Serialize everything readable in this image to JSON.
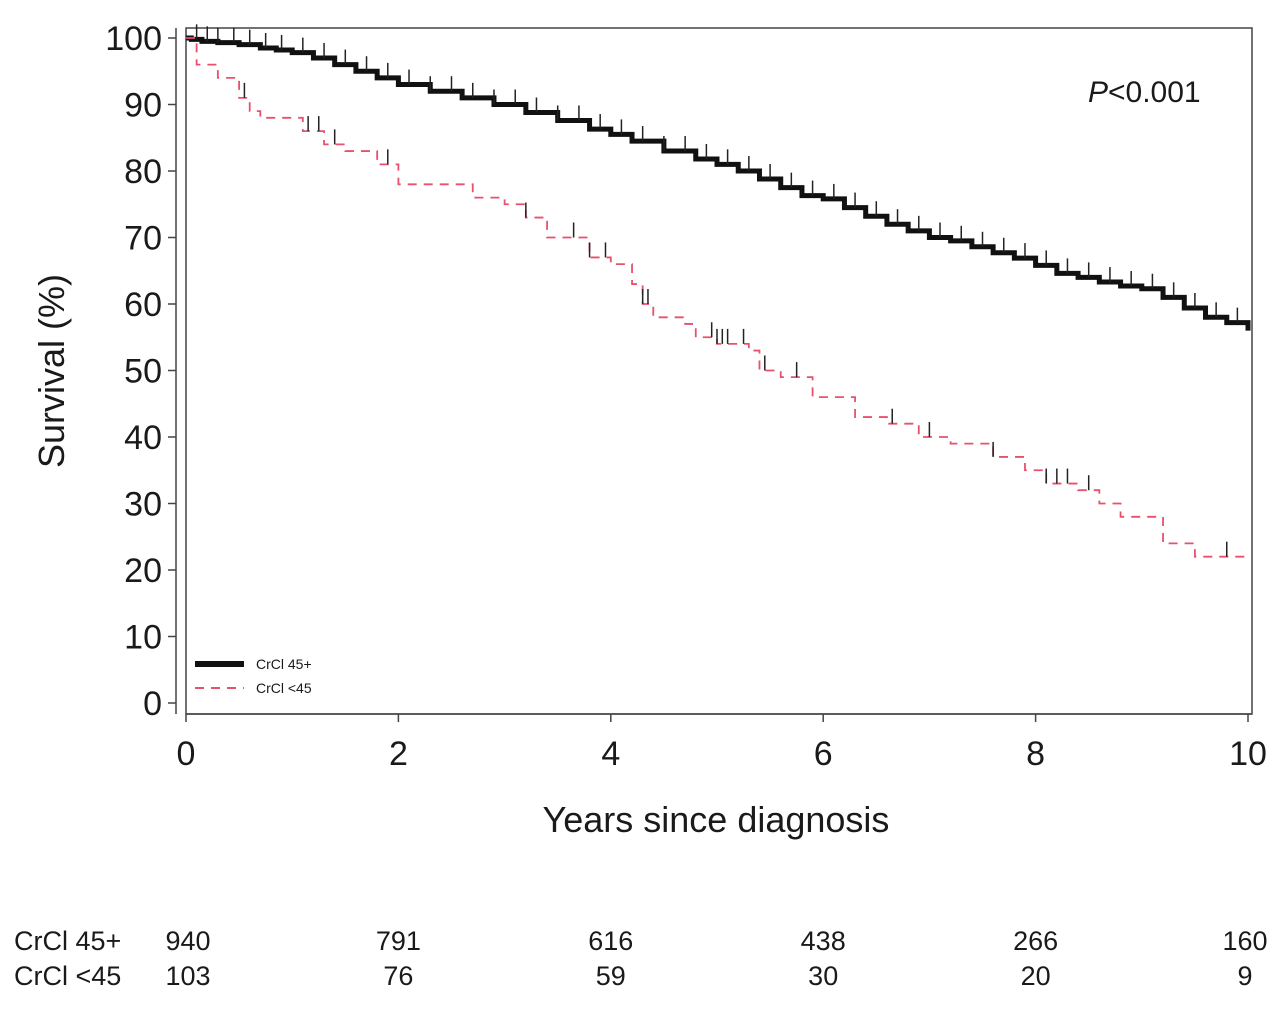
{
  "chart_data": {
    "type": "line",
    "title": "",
    "xlabel": "Years since diagnosis",
    "ylabel": "Survival (%)",
    "xlim": [
      0,
      10
    ],
    "ylim": [
      0,
      100
    ],
    "x_ticks": [
      0,
      2,
      4,
      6,
      8,
      10
    ],
    "x_tick_labels": [
      "0",
      "2",
      "4",
      "6",
      "8",
      "10"
    ],
    "y_ticks": [
      0,
      10,
      20,
      30,
      40,
      50,
      60,
      70,
      80,
      90,
      100
    ],
    "y_tick_labels": [
      "0",
      "10",
      "20",
      "30",
      "40",
      "50",
      "60",
      "70",
      "80",
      "90",
      "100"
    ],
    "annotation_p": "P",
    "annotation_value": "<0.001",
    "legend_position": "bottom-left",
    "series": [
      {
        "name": "CrCl 45+",
        "color": "#111111",
        "style": "solid",
        "x": [
          0,
          0.05,
          0.15,
          0.3,
          0.5,
          0.7,
          0.85,
          1.0,
          1.2,
          1.4,
          1.6,
          1.8,
          2.0,
          2.3,
          2.6,
          2.9,
          3.2,
          3.5,
          3.8,
          4.0,
          4.2,
          4.5,
          4.8,
          5.0,
          5.2,
          5.4,
          5.6,
          5.8,
          6.0,
          6.2,
          6.4,
          6.6,
          6.8,
          7.0,
          7.2,
          7.4,
          7.6,
          7.8,
          8.0,
          8.2,
          8.4,
          8.6,
          8.8,
          9.0,
          9.2,
          9.4,
          9.6,
          9.8,
          10.0
        ],
        "values": [
          100,
          99.8,
          99.5,
          99.3,
          99.0,
          98.5,
          98.2,
          97.8,
          97.0,
          96.0,
          95.0,
          94.0,
          93.0,
          92.0,
          91.0,
          90.0,
          88.8,
          87.6,
          86.3,
          85.5,
          84.5,
          83.0,
          81.8,
          81.0,
          80.0,
          78.8,
          77.5,
          76.3,
          75.8,
          74.5,
          73.2,
          72.0,
          71.0,
          70.0,
          69.5,
          68.6,
          67.7,
          66.9,
          65.8,
          64.6,
          64.0,
          63.3,
          62.7,
          62.3,
          61.0,
          59.4,
          58.0,
          57.2,
          56.0
        ],
        "censor_x": [
          0.1,
          0.2,
          0.3,
          0.45,
          0.6,
          0.75,
          0.9,
          1.1,
          1.3,
          1.5,
          1.7,
          1.9,
          2.1,
          2.3,
          2.5,
          2.7,
          2.9,
          3.1,
          3.3,
          3.5,
          3.7,
          3.9,
          4.1,
          4.3,
          4.5,
          4.7,
          4.9,
          5.1,
          5.3,
          5.5,
          5.7,
          5.9,
          6.1,
          6.3,
          6.5,
          6.7,
          6.9,
          7.1,
          7.3,
          7.5,
          7.7,
          7.9,
          8.1,
          8.3,
          8.5,
          8.7,
          8.9,
          9.1,
          9.3,
          9.5,
          9.7,
          9.9
        ],
        "at_risk": [
          "940",
          "791",
          "616",
          "438",
          "266",
          "160"
        ]
      },
      {
        "name": "CrCl <45",
        "color": "#e8506e",
        "style": "dashed",
        "x": [
          0,
          0.1,
          0.3,
          0.5,
          0.6,
          0.7,
          1.1,
          1.3,
          1.5,
          1.8,
          2.0,
          2.3,
          2.7,
          3.0,
          3.2,
          3.4,
          3.6,
          3.8,
          4.0,
          4.2,
          4.3,
          4.4,
          4.7,
          4.8,
          5.0,
          5.2,
          5.3,
          5.4,
          5.6,
          5.9,
          6.3,
          6.6,
          6.9,
          7.2,
          7.6,
          7.9,
          8.1,
          8.4,
          8.6,
          8.8,
          9.2,
          9.5,
          10.0
        ],
        "values": [
          100,
          96,
          94,
          91,
          89,
          88,
          86,
          84,
          83,
          81,
          78,
          78,
          76,
          75,
          73,
          70,
          70,
          67,
          66,
          63,
          60,
          58,
          57,
          55,
          54,
          54,
          53,
          50,
          49,
          46,
          43,
          42,
          40,
          39,
          37,
          35,
          33,
          32,
          30,
          28,
          24,
          22,
          22
        ],
        "censor_x": [
          0.55,
          1.15,
          1.25,
          1.4,
          1.9,
          3.2,
          3.65,
          3.8,
          3.95,
          4.3,
          4.35,
          4.95,
          5.0,
          5.05,
          5.1,
          5.25,
          5.45,
          5.75,
          6.65,
          7.0,
          7.6,
          8.1,
          8.2,
          8.3,
          8.5,
          9.8
        ],
        "at_risk": [
          "103",
          "76",
          "59",
          "30",
          "20",
          "9"
        ]
      }
    ]
  }
}
